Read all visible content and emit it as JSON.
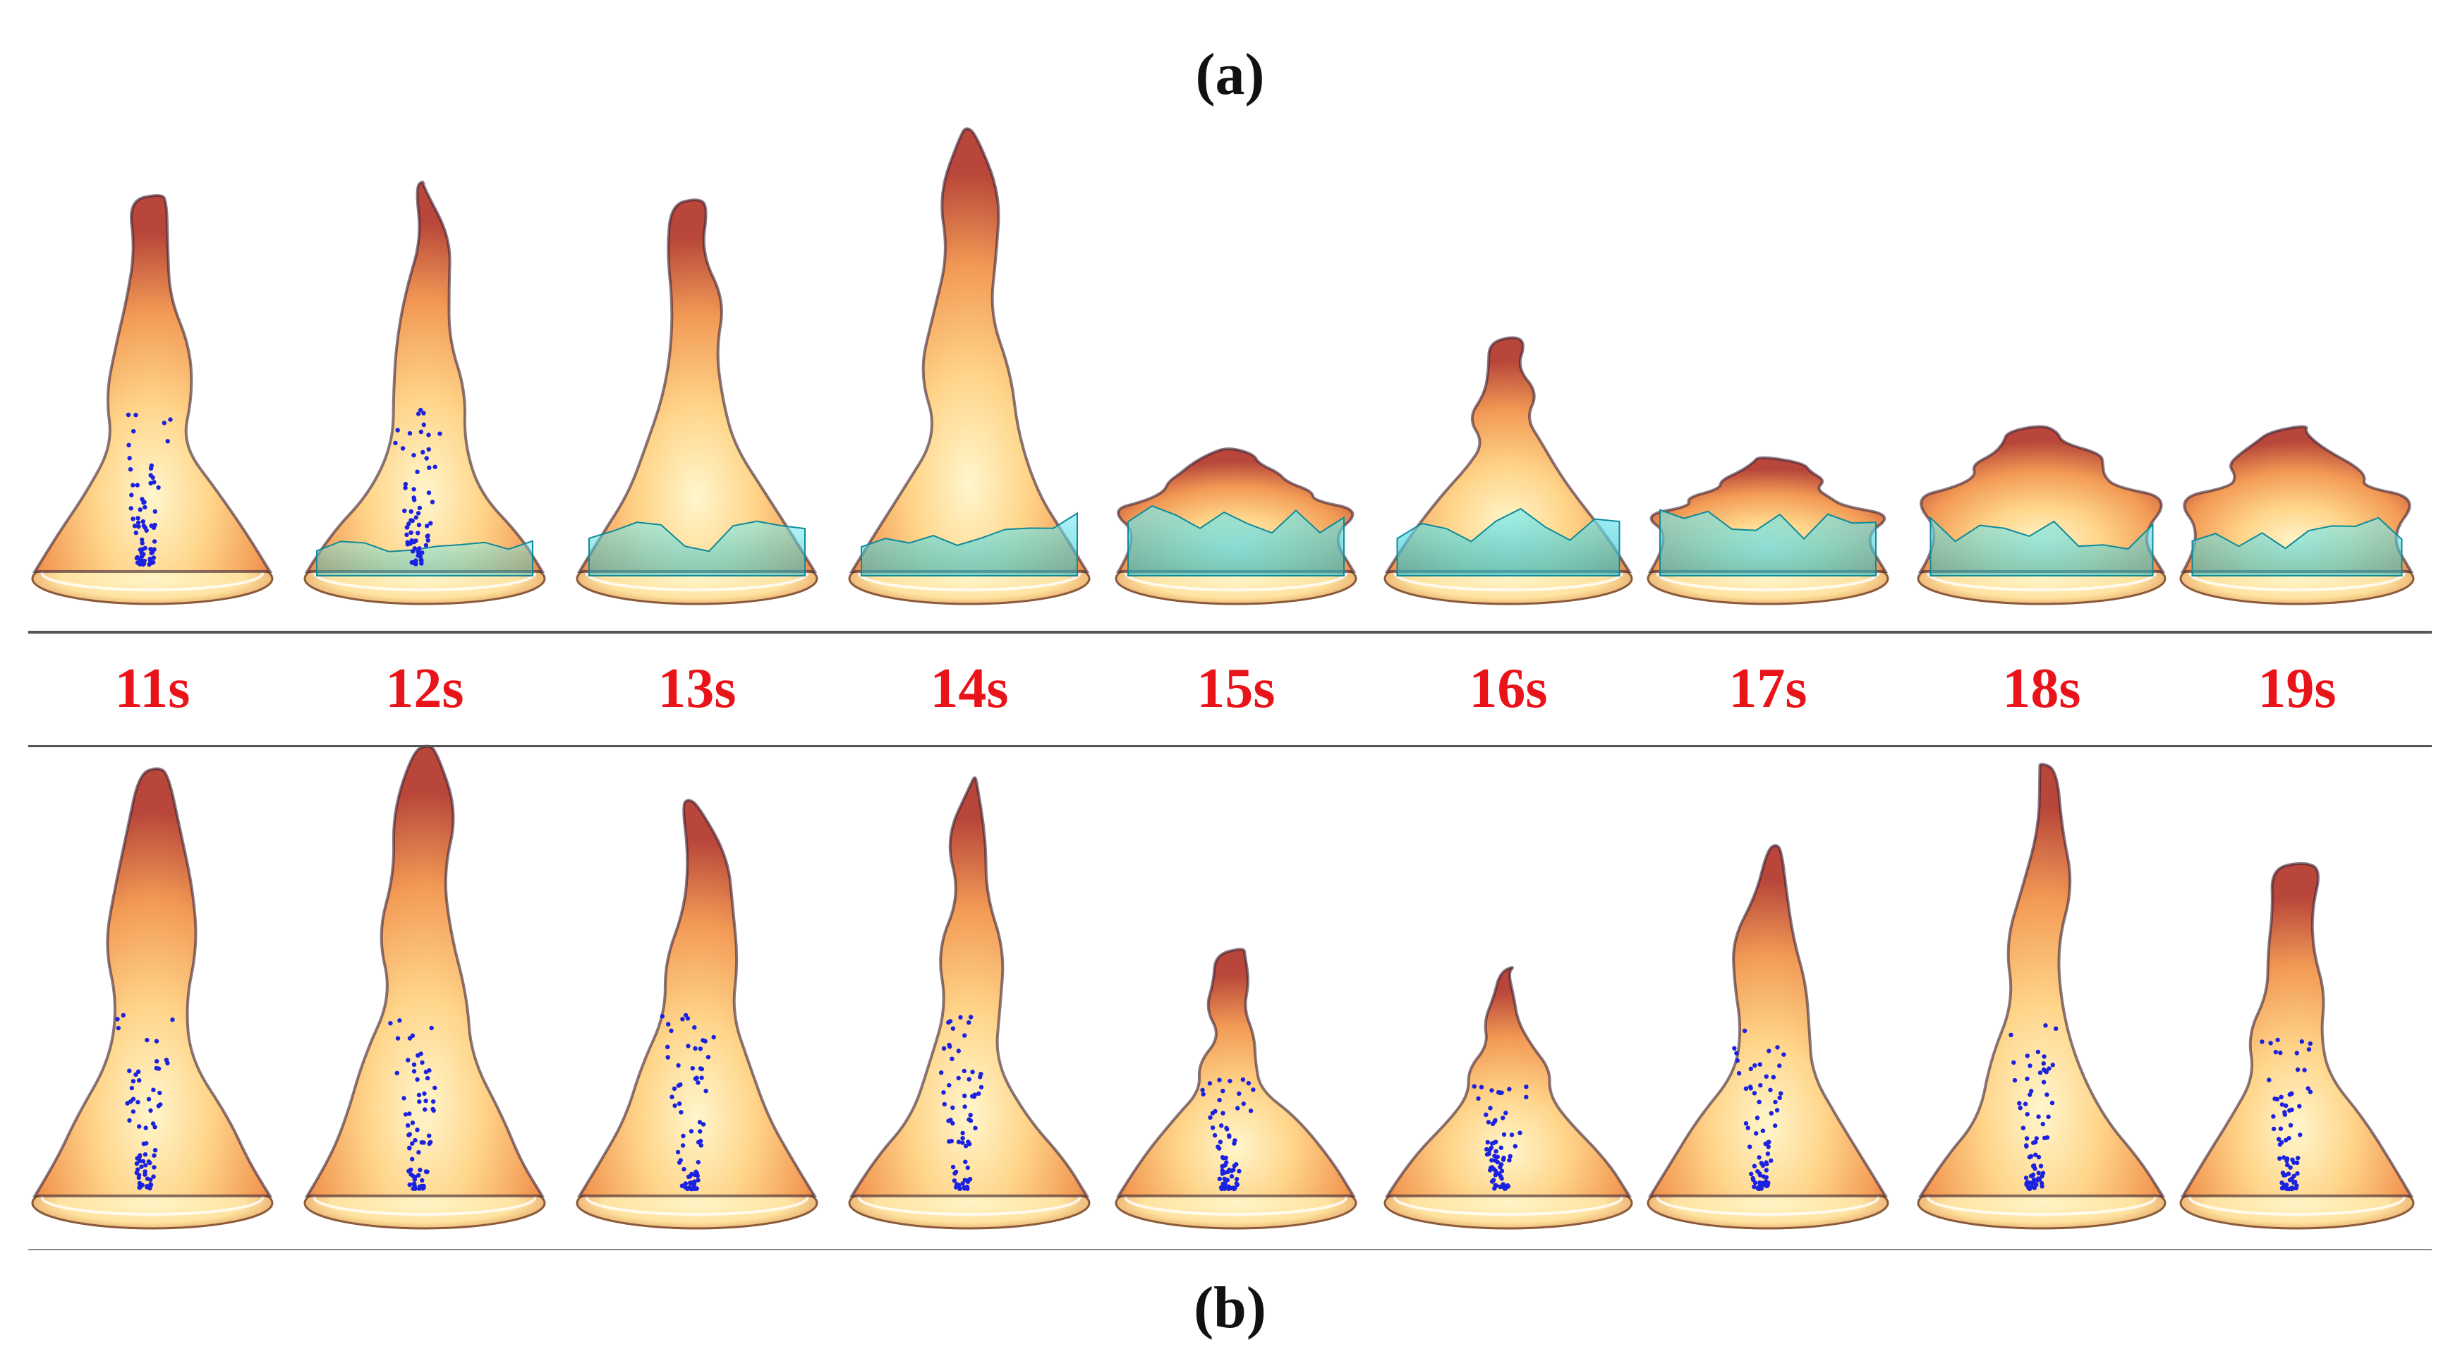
{
  "captions": {
    "top": "(a)",
    "bottom": "(b)"
  },
  "time_labels": [
    "11s",
    "12s",
    "13s",
    "14s",
    "15s",
    "16s",
    "17s",
    "18s",
    "19s"
  ],
  "colors": {
    "label_red": "#e8141a",
    "flame_outer": "#c8553a",
    "flame_mid": "#f29a55",
    "flame_inner": "#ffe7a8",
    "flame_dark": "#3a2030",
    "particles": "#1a22e0",
    "water_mist": "#39d6e0"
  },
  "panels": {
    "top": {
      "flame_heights": [
        0.85,
        0.88,
        0.84,
        1.0,
        0.28,
        0.53,
        0.26,
        0.33,
        0.33
      ],
      "mist_cover": [
        0.0,
        0.05,
        0.45,
        0.65,
        0.85,
        0.95,
        0.75,
        0.55,
        0.55
      ],
      "particles": [
        true,
        true,
        false,
        false,
        false,
        false,
        false,
        false,
        false
      ]
    },
    "bottom": {
      "flame_heights": [
        0.95,
        1.0,
        0.88,
        0.93,
        0.55,
        0.51,
        0.78,
        0.96,
        0.74
      ],
      "mist_cover": [
        0,
        0,
        0,
        0,
        0,
        0,
        0,
        0,
        0
      ],
      "particles": [
        true,
        true,
        true,
        true,
        true,
        true,
        true,
        true,
        true
      ]
    }
  }
}
